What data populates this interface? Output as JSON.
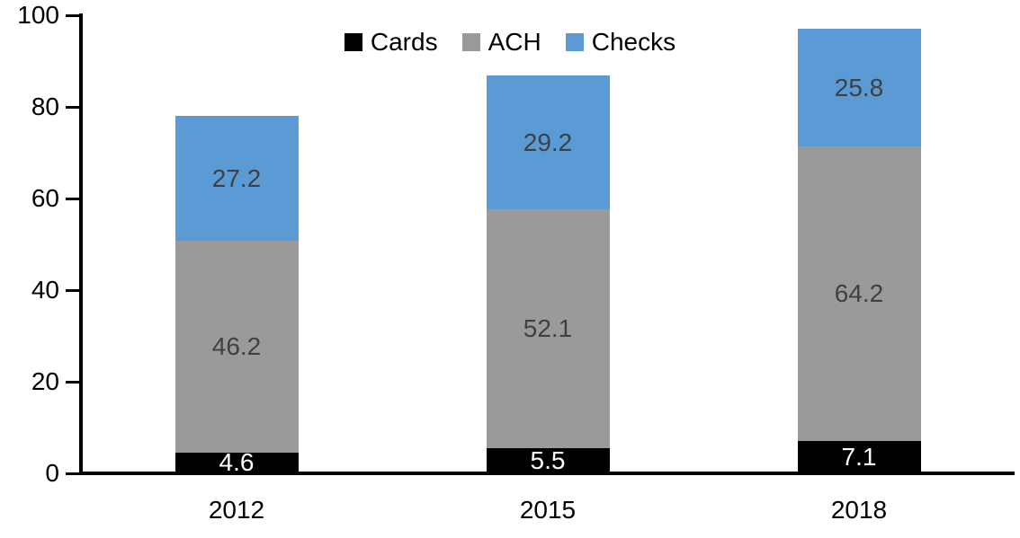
{
  "chart_data": {
    "type": "bar",
    "stacked": true,
    "title": "",
    "categories": [
      "2012",
      "2015",
      "2018"
    ],
    "series": [
      {
        "name": "Cards",
        "color": "#000000",
        "label_color": "#ffffff",
        "values": [
          4.6,
          5.5,
          7.1
        ]
      },
      {
        "name": "ACH",
        "color": "#9a9a9a",
        "label_color": "#404040",
        "values": [
          46.2,
          52.1,
          64.2
        ]
      },
      {
        "name": "Checks",
        "color": "#5b9bd5",
        "label_color": "#404040",
        "values": [
          27.2,
          29.2,
          25.8
        ]
      }
    ],
    "totals": [
      78.0,
      86.8,
      97.1
    ],
    "xlabel": "",
    "ylabel": "",
    "ylim": [
      0,
      100
    ],
    "yticks": [
      0,
      20,
      40,
      60,
      80,
      100
    ],
    "grid": false,
    "legend_position": "top-center",
    "data_labels": true,
    "axis_color": "#000000"
  }
}
